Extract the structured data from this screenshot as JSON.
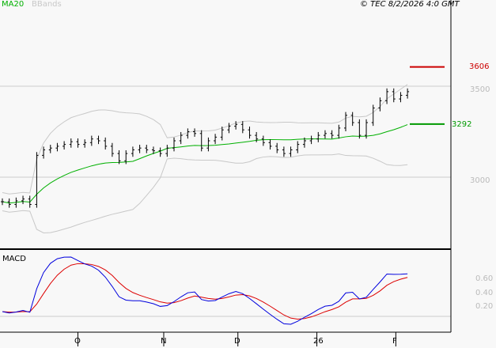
{
  "legend": {
    "ma": "MA20",
    "bb": "BBands",
    "copyright": "© TEC 8/2/2026 4:0 GMT"
  },
  "colors": {
    "ma": "#00b000",
    "bb": "#c8c8c8",
    "macd": "#0000dd",
    "signal": "#dd0000",
    "resistance": "#cc0000",
    "support": "#009900"
  },
  "chart_data": {
    "type": "ohlc",
    "title": "",
    "closes": [
      2865,
      2850,
      2870,
      2880,
      2850,
      3120,
      3150,
      3160,
      3170,
      3180,
      3195,
      3180,
      3190,
      3210,
      3200,
      3170,
      3130,
      3090,
      3130,
      3150,
      3160,
      3150,
      3145,
      3130,
      3160,
      3200,
      3230,
      3250,
      3240,
      3160,
      3200,
      3220,
      3260,
      3280,
      3290,
      3260,
      3230,
      3210,
      3190,
      3170,
      3150,
      3130,
      3150,
      3180,
      3200,
      3210,
      3230,
      3240,
      3230,
      3270,
      3340,
      3300,
      3230,
      3300,
      3380,
      3420,
      3470,
      3430,
      3450,
      3470
    ],
    "ylim": [
      2650,
      3850
    ],
    "yticks": [
      {
        "v": 3500,
        "label": "3500"
      },
      {
        "v": 3000,
        "label": "3000"
      }
    ],
    "levels": [
      {
        "name": "resistance",
        "v": 3606,
        "label": "3606"
      },
      {
        "name": "support",
        "v": 3292,
        "label": "3292"
      }
    ],
    "macd_ticks": [
      "0.60",
      "0.40",
      "0.20"
    ],
    "xticks": [
      {
        "i": 11,
        "label": "O"
      },
      {
        "i": 23.5,
        "label": "N"
      },
      {
        "i": 34.3,
        "label": "D"
      },
      {
        "i": 45.8,
        "label": "26"
      },
      {
        "i": 57.3,
        "label": "F"
      }
    ],
    "panel_label": "MACD"
  }
}
